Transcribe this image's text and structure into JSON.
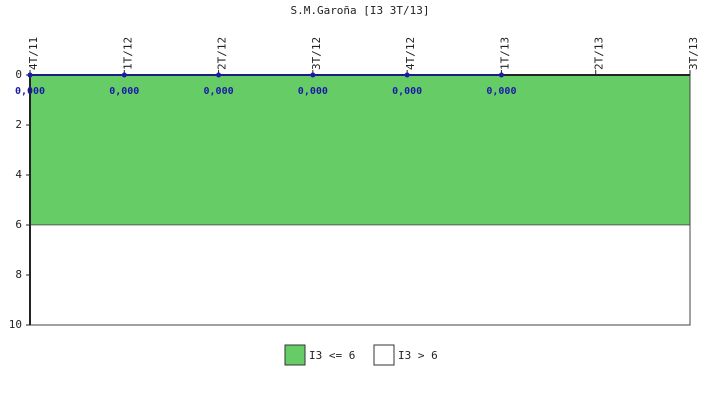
{
  "chart_data": {
    "type": "line",
    "title": "S.M.Garoña [I3 3T/13]",
    "categories": [
      "4T/11",
      "1T/12",
      "2T/12",
      "3T/12",
      "4T/12",
      "1T/13",
      "2T/13",
      "3T/13"
    ],
    "series": [
      {
        "name": "I3",
        "color": "#1a1aa8",
        "values": [
          0,
          0,
          0,
          0,
          0,
          0,
          null,
          null
        ],
        "value_labels": [
          "0,000",
          "0,000",
          "0,000",
          "0,000",
          "0,000",
          "0,000",
          null,
          null
        ]
      }
    ],
    "bands": [
      {
        "name": "I3 <= 6",
        "color": "#66cc66",
        "range": [
          0,
          6
        ]
      },
      {
        "name": "I3 > 6",
        "color": "#ffffff",
        "range": [
          6,
          10
        ]
      }
    ],
    "ylim": [
      0,
      10
    ],
    "yticks": [
      0,
      2,
      4,
      6,
      8,
      10
    ],
    "y_inverted": true
  }
}
